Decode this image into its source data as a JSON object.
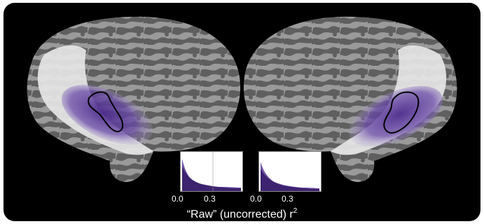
{
  "figure": {
    "caption": {
      "prefix": "“Raw” (uncorrected) r",
      "superscript": "2"
    },
    "histograms": [
      {
        "tick_labels": [
          "0.0",
          "0.3"
        ],
        "color": "#5b3a9a"
      },
      {
        "tick_labels": [
          "0.0",
          "0.3"
        ],
        "color": "#5b3a9a"
      }
    ],
    "colors": {
      "background": "#000000",
      "cortex_light": "#9a9a9a",
      "cortex_dark": "#5f5f5f",
      "highlight": "#5b3a9a",
      "outline": "#000000"
    }
  }
}
